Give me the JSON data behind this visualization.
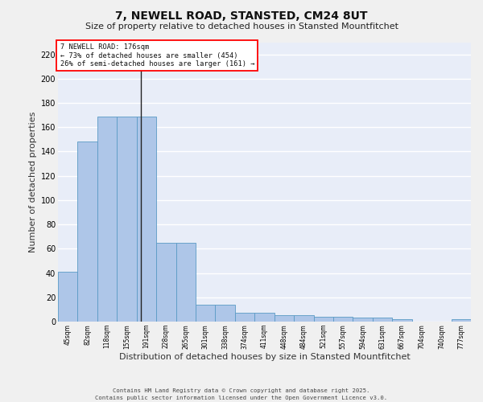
{
  "title": "7, NEWELL ROAD, STANSTED, CM24 8UT",
  "subtitle": "Size of property relative to detached houses in Stansted Mountfitchet",
  "xlabel": "Distribution of detached houses by size in Stansted Mountfitchet",
  "ylabel": "Number of detached properties",
  "categories": [
    "45sqm",
    "82sqm",
    "118sqm",
    "155sqm",
    "191sqm",
    "228sqm",
    "265sqm",
    "301sqm",
    "338sqm",
    "374sqm",
    "411sqm",
    "448sqm",
    "484sqm",
    "521sqm",
    "557sqm",
    "594sqm",
    "631sqm",
    "667sqm",
    "704sqm",
    "740sqm",
    "777sqm"
  ],
  "values": [
    41,
    148,
    169,
    169,
    169,
    65,
    65,
    14,
    14,
    7,
    7,
    5,
    5,
    4,
    4,
    3,
    3,
    2,
    0,
    0,
    2
  ],
  "bar_color": "#aec6e8",
  "bar_edge_color": "#5a9ac5",
  "bg_color": "#e8edf8",
  "grid_color": "#ffffff",
  "vline_color": "#222222",
  "annotation_box_text": "7 NEWELL ROAD: 176sqm\n← 73% of detached houses are smaller (454)\n26% of semi-detached houses are larger (161) →",
  "footer_line1": "Contains HM Land Registry data © Crown copyright and database right 2025.",
  "footer_line2": "Contains public sector information licensed under the Open Government Licence v3.0.",
  "ylim": [
    0,
    230
  ],
  "yticks": [
    0,
    20,
    40,
    60,
    80,
    100,
    120,
    140,
    160,
    180,
    200,
    220
  ],
  "fig_bg": "#f0f0f0",
  "title_fontsize": 10,
  "subtitle_fontsize": 8,
  "ylabel_fontsize": 8,
  "xlabel_fontsize": 8
}
